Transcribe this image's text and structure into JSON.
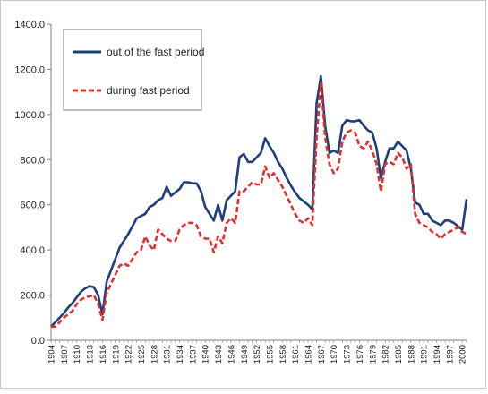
{
  "chart_data": {
    "type": "line",
    "ylim": [
      0,
      1400
    ],
    "yticks": [
      "0.0",
      "200.0",
      "400.0",
      "600.0",
      "800.0",
      "1000.0",
      "1200.0",
      "1400.0"
    ],
    "xticks": [
      "1904",
      "1907",
      "1910",
      "1913",
      "1916",
      "1919",
      "1922",
      "1925",
      "1928",
      "1931",
      "1934",
      "1937",
      "1940",
      "1943",
      "1946",
      "1949",
      "1952",
      "1955",
      "1958",
      "1961",
      "1964",
      "1967",
      "1970",
      "1973",
      "1976",
      "1979",
      "1982",
      "1985",
      "1988",
      "1991",
      "1994",
      "1997",
      "2000"
    ],
    "x_start": 1904,
    "x_end": 2001,
    "grid": false,
    "legend_position": "top-left",
    "series": [
      {
        "name": "out of the fast period",
        "color": "#1f3f7a",
        "style": "solid",
        "points": [
          [
            1904,
            60
          ],
          [
            1905,
            80
          ],
          [
            1906,
            100
          ],
          [
            1907,
            120
          ],
          [
            1908,
            145
          ],
          [
            1909,
            165
          ],
          [
            1910,
            190
          ],
          [
            1911,
            215
          ],
          [
            1912,
            230
          ],
          [
            1913,
            240
          ],
          [
            1914,
            235
          ],
          [
            1915,
            200
          ],
          [
            1916,
            115
          ],
          [
            1917,
            260
          ],
          [
            1918,
            310
          ],
          [
            1919,
            360
          ],
          [
            1920,
            410
          ],
          [
            1921,
            440
          ],
          [
            1922,
            470
          ],
          [
            1923,
            505
          ],
          [
            1924,
            540
          ],
          [
            1925,
            550
          ],
          [
            1926,
            560
          ],
          [
            1927,
            590
          ],
          [
            1928,
            600
          ],
          [
            1929,
            620
          ],
          [
            1930,
            630
          ],
          [
            1931,
            680
          ],
          [
            1932,
            640
          ],
          [
            1933,
            655
          ],
          [
            1934,
            670
          ],
          [
            1935,
            700
          ],
          [
            1936,
            700
          ],
          [
            1937,
            695
          ],
          [
            1938,
            695
          ],
          [
            1939,
            660
          ],
          [
            1940,
            590
          ],
          [
            1941,
            560
          ],
          [
            1942,
            530
          ],
          [
            1943,
            600
          ],
          [
            1944,
            530
          ],
          [
            1945,
            620
          ],
          [
            1946,
            640
          ],
          [
            1947,
            660
          ],
          [
            1948,
            810
          ],
          [
            1949,
            825
          ],
          [
            1950,
            790
          ],
          [
            1951,
            790
          ],
          [
            1952,
            810
          ],
          [
            1953,
            830
          ],
          [
            1954,
            895
          ],
          [
            1955,
            860
          ],
          [
            1956,
            830
          ],
          [
            1957,
            790
          ],
          [
            1958,
            760
          ],
          [
            1959,
            720
          ],
          [
            1960,
            685
          ],
          [
            1961,
            655
          ],
          [
            1962,
            630
          ],
          [
            1963,
            615
          ],
          [
            1964,
            600
          ],
          [
            1965,
            580
          ],
          [
            1966,
            1050
          ],
          [
            1967,
            1170
          ],
          [
            1968,
            950
          ],
          [
            1969,
            830
          ],
          [
            1970,
            840
          ],
          [
            1971,
            830
          ],
          [
            1972,
            950
          ],
          [
            1973,
            975
          ],
          [
            1974,
            970
          ],
          [
            1975,
            970
          ],
          [
            1976,
            975
          ],
          [
            1977,
            950
          ],
          [
            1978,
            930
          ],
          [
            1979,
            920
          ],
          [
            1980,
            850
          ],
          [
            1981,
            720
          ],
          [
            1982,
            790
          ],
          [
            1983,
            850
          ],
          [
            1984,
            850
          ],
          [
            1985,
            880
          ],
          [
            1986,
            860
          ],
          [
            1987,
            840
          ],
          [
            1988,
            760
          ],
          [
            1989,
            610
          ],
          [
            1990,
            600
          ],
          [
            1991,
            560
          ],
          [
            1992,
            560
          ],
          [
            1993,
            530
          ],
          [
            1994,
            520
          ],
          [
            1995,
            510
          ],
          [
            1996,
            530
          ],
          [
            1997,
            530
          ],
          [
            1998,
            520
          ],
          [
            1999,
            505
          ],
          [
            2000,
            490
          ],
          [
            2001,
            625
          ]
        ]
      },
      {
        "name": "during fast period",
        "color": "#e03030",
        "style": "dashed",
        "points": [
          [
            1904,
            60
          ],
          [
            1905,
            60
          ],
          [
            1906,
            80
          ],
          [
            1907,
            100
          ],
          [
            1908,
            115
          ],
          [
            1909,
            130
          ],
          [
            1910,
            160
          ],
          [
            1911,
            180
          ],
          [
            1912,
            190
          ],
          [
            1913,
            195
          ],
          [
            1914,
            200
          ],
          [
            1915,
            160
          ],
          [
            1916,
            90
          ],
          [
            1917,
            210
          ],
          [
            1918,
            250
          ],
          [
            1919,
            290
          ],
          [
            1920,
            330
          ],
          [
            1921,
            340
          ],
          [
            1922,
            330
          ],
          [
            1923,
            360
          ],
          [
            1924,
            390
          ],
          [
            1925,
            400
          ],
          [
            1926,
            460
          ],
          [
            1927,
            420
          ],
          [
            1928,
            400
          ],
          [
            1929,
            490
          ],
          [
            1930,
            470
          ],
          [
            1931,
            450
          ],
          [
            1932,
            440
          ],
          [
            1933,
            440
          ],
          [
            1934,
            490
          ],
          [
            1935,
            510
          ],
          [
            1936,
            520
          ],
          [
            1937,
            520
          ],
          [
            1938,
            510
          ],
          [
            1939,
            460
          ],
          [
            1940,
            450
          ],
          [
            1941,
            450
          ],
          [
            1942,
            390
          ],
          [
            1943,
            460
          ],
          [
            1944,
            430
          ],
          [
            1945,
            520
          ],
          [
            1946,
            540
          ],
          [
            1947,
            520
          ],
          [
            1948,
            660
          ],
          [
            1949,
            660
          ],
          [
            1950,
            680
          ],
          [
            1951,
            700
          ],
          [
            1952,
            690
          ],
          [
            1953,
            690
          ],
          [
            1954,
            770
          ],
          [
            1955,
            720
          ],
          [
            1956,
            740
          ],
          [
            1957,
            710
          ],
          [
            1958,
            680
          ],
          [
            1959,
            640
          ],
          [
            1960,
            600
          ],
          [
            1961,
            560
          ],
          [
            1962,
            530
          ],
          [
            1963,
            520
          ],
          [
            1964,
            540
          ],
          [
            1965,
            510
          ],
          [
            1966,
            900
          ],
          [
            1967,
            1140
          ],
          [
            1968,
            900
          ],
          [
            1969,
            780
          ],
          [
            1970,
            740
          ],
          [
            1971,
            760
          ],
          [
            1972,
            880
          ],
          [
            1973,
            920
          ],
          [
            1974,
            930
          ],
          [
            1975,
            920
          ],
          [
            1976,
            860
          ],
          [
            1977,
            850
          ],
          [
            1978,
            880
          ],
          [
            1979,
            840
          ],
          [
            1980,
            780
          ],
          [
            1981,
            660
          ],
          [
            1982,
            780
          ],
          [
            1983,
            790
          ],
          [
            1984,
            780
          ],
          [
            1985,
            830
          ],
          [
            1986,
            810
          ],
          [
            1987,
            760
          ],
          [
            1988,
            780
          ],
          [
            1989,
            560
          ],
          [
            1990,
            520
          ],
          [
            1991,
            510
          ],
          [
            1992,
            500
          ],
          [
            1993,
            480
          ],
          [
            1994,
            470
          ],
          [
            1995,
            450
          ],
          [
            1996,
            470
          ],
          [
            1997,
            480
          ],
          [
            1998,
            490
          ],
          [
            1999,
            500
          ],
          [
            2000,
            480
          ],
          [
            2001,
            470
          ]
        ]
      }
    ]
  }
}
